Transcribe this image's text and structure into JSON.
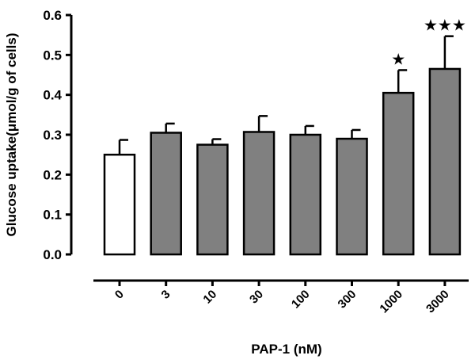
{
  "chart_data": {
    "type": "bar",
    "title": "",
    "xlabel": "PAP-1 (nM)",
    "ylabel": "Glucose uptake(μmol/g of cells)",
    "ylim": [
      0,
      0.6
    ],
    "yticks": [
      "0.0",
      "0.1",
      "0.2",
      "0.3",
      "0.4",
      "0.5",
      "0.6"
    ],
    "categories": [
      "0",
      "3",
      "10",
      "30",
      "100",
      "300",
      "1000",
      "3000"
    ],
    "values": [
      0.25,
      0.305,
      0.275,
      0.307,
      0.3,
      0.29,
      0.405,
      0.465
    ],
    "errors": [
      0.037,
      0.023,
      0.014,
      0.04,
      0.022,
      0.022,
      0.057,
      0.082
    ],
    "significance": [
      "",
      "",
      "",
      "",
      "",
      "",
      "★",
      "★★★"
    ],
    "grid": false,
    "colors": {
      "control": "#ffffff",
      "treated": "#808080",
      "outline": "#000000"
    }
  }
}
